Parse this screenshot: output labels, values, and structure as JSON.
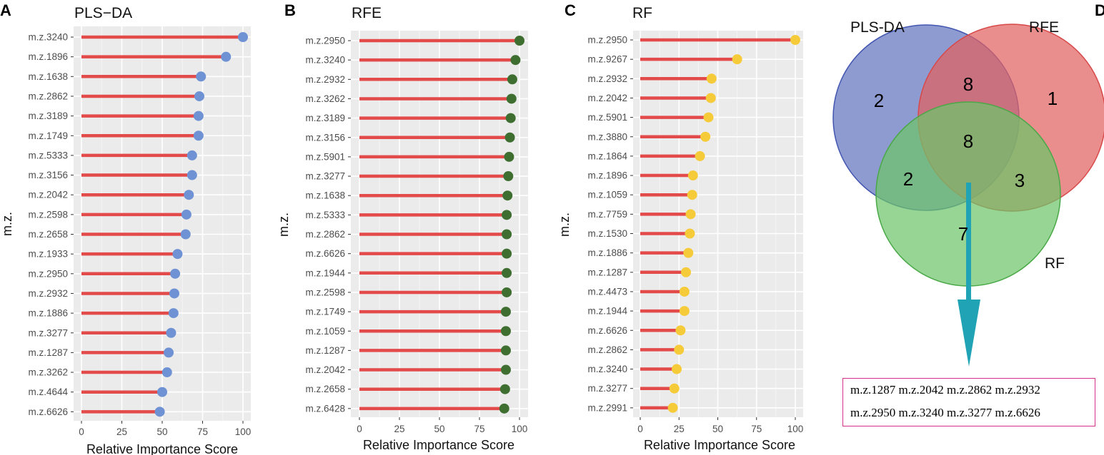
{
  "chart_data": [
    {
      "type": "lollipop",
      "panel": "A",
      "title": "PLS−DA",
      "xlabel": "Relative Importance Score",
      "ylabel": "m.z.",
      "xlim": [
        0,
        100
      ],
      "xticks": [
        0,
        25,
        50,
        75,
        100
      ],
      "xtick_labels": [
        "0",
        "25",
        "50",
        "75",
        "100"
      ],
      "stick_color": "#e34a4a",
      "point_color": "#6e92d4",
      "categories": [
        "m.z.3240",
        "m.z.1896",
        "m.z.1638",
        "m.z.2862",
        "m.z.3189",
        "m.z.1749",
        "m.z.5333",
        "m.z.3156",
        "m.z.2042",
        "m.z.2598",
        "m.z.2658",
        "m.z.1933",
        "m.z.2950",
        "m.z.2932",
        "m.z.1886",
        "m.z.3277",
        "m.z.1287",
        "m.z.3262",
        "m.z.4644",
        "m.z.6626"
      ],
      "values": [
        100,
        89.5,
        74,
        73,
        72.5,
        72.5,
        68.5,
        68.5,
        66.5,
        65,
        64.5,
        59.5,
        58,
        57.5,
        57,
        55.5,
        54,
        53,
        50,
        48.5
      ]
    },
    {
      "type": "lollipop",
      "panel": "B",
      "title": "RFE",
      "xlabel": "Relative Importance Score",
      "ylabel": "m.z.",
      "xlim": [
        0,
        100
      ],
      "xticks": [
        0,
        25,
        50,
        75,
        100
      ],
      "xtick_labels": [
        "0",
        "25",
        "50",
        "75",
        "100"
      ],
      "stick_color": "#e34a4a",
      "point_color": "#3f6f30",
      "categories": [
        "m.z.2950",
        "m.z.3240",
        "m.z.2932",
        "m.z.3262",
        "m.z.3189",
        "m.z.3156",
        "m.z.5901",
        "m.z.3277",
        "m.z.1638",
        "m.z.5333",
        "m.z.2862",
        "m.z.6626",
        "m.z.1944",
        "m.z.2598",
        "m.z.1749",
        "m.z.1059",
        "m.z.1287",
        "m.z.2042",
        "m.z.2658",
        "m.z.6428"
      ],
      "values": [
        100,
        97.5,
        95.5,
        95,
        94.5,
        94,
        93.5,
        93,
        92.5,
        92,
        92,
        92,
        92,
        92,
        91.5,
        91.5,
        91.5,
        91.5,
        91,
        90.5
      ]
    },
    {
      "type": "lollipop",
      "panel": "C",
      "title": "RF",
      "xlabel": "Relative Importance Score",
      "ylabel": "m.z.",
      "xlim": [
        0,
        100
      ],
      "xticks": [
        0,
        25,
        50,
        75,
        100
      ],
      "xtick_labels": [
        "0",
        "25",
        "50",
        "75",
        "100"
      ],
      "stick_color": "#e34a4a",
      "point_color": "#f6cb3a",
      "categories": [
        "m.z.2950",
        "m.z.9267",
        "m.z.2932",
        "m.z.2042",
        "m.z.5901",
        "m.z.3880",
        "m.z.1864",
        "m.z.1896",
        "m.z.1059",
        "m.z.7759",
        "m.z.1530",
        "m.z.1886",
        "m.z.1287",
        "m.z.4473",
        "m.z.1944",
        "m.z.6626",
        "m.z.2862",
        "m.z.3240",
        "m.z.3277",
        "m.z.2991"
      ],
      "values": [
        100,
        62.5,
        46,
        45.5,
        44,
        42,
        38.5,
        34,
        33.5,
        32.5,
        32,
        31,
        29.5,
        28.5,
        28.5,
        26,
        25,
        23.5,
        22,
        21
      ]
    },
    {
      "type": "venn",
      "panel": "D",
      "sets": [
        {
          "name": "PLS-DA",
          "color": "#5266b8"
        },
        {
          "name": "RFE",
          "color": "#e26161"
        },
        {
          "name": "RF",
          "color": "#6ec56a"
        }
      ],
      "regions": {
        "PLS-DA_only": 2,
        "RFE_only": 1,
        "PLS-DA_RFE": 8,
        "PLS-DA_RFE_RF": 8,
        "PLS-DA_RF": 2,
        "RFE_RF": 3,
        "RF_only": 7
      },
      "arrow_color": "#1fa3b5"
    }
  ],
  "panels": {
    "A": {
      "letter": "A",
      "title": "PLS−DA"
    },
    "B": {
      "letter": "B",
      "title": "RFE"
    },
    "C": {
      "letter": "C",
      "title": "RF"
    },
    "D": {
      "letter": "D"
    }
  },
  "venn": {
    "set_labels": [
      "PLS-DA",
      "RFE",
      "RF"
    ],
    "counts": {
      "pls_only": "2",
      "rfe_only": "1",
      "pls_rfe": "8",
      "center": "8",
      "pls_rf": "2",
      "rfe_rf": "3",
      "rf_only": "7"
    }
  },
  "common_features": {
    "line1": "m.z.1287 m.z.2042 m.z.2862 m.z.2932",
    "line2": "m.z.2950 m.z.3240 m.z.3277 m.z.6626"
  }
}
